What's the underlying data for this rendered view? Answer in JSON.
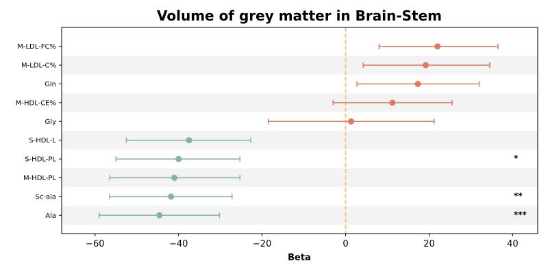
{
  "chart_data": {
    "type": "forest",
    "title": "Volume of grey matter in Brain-Stem",
    "xlabel": "Beta",
    "xlim": [
      -68,
      46
    ],
    "xticks": [
      -60,
      -40,
      -20,
      0,
      20,
      40
    ],
    "xtick_labels": [
      "−60",
      "−40",
      "−20",
      "0",
      "20",
      "40"
    ],
    "reference_line": 0,
    "colors": {
      "positive": "#DE7A5E",
      "negative": "#82B59B",
      "reference": "#F2C77A",
      "band": "#F3F3F3"
    },
    "rows": [
      {
        "label": "M-LDL-FC%",
        "beta": 22.0,
        "ci_low": 8.0,
        "ci_high": 36.5,
        "sig": ""
      },
      {
        "label": "M-LDL-C%",
        "beta": 19.2,
        "ci_low": 4.2,
        "ci_high": 34.5,
        "sig": ""
      },
      {
        "label": "Gln",
        "beta": 17.3,
        "ci_low": 2.7,
        "ci_high": 32.0,
        "sig": ""
      },
      {
        "label": "M-HDL-CE%",
        "beta": 11.2,
        "ci_low": -3.0,
        "ci_high": 25.5,
        "sig": ""
      },
      {
        "label": "Gly",
        "beta": 1.3,
        "ci_low": -18.5,
        "ci_high": 21.2,
        "sig": ""
      },
      {
        "label": "S-HDL-L",
        "beta": -37.5,
        "ci_low": -52.5,
        "ci_high": -22.7,
        "sig": ""
      },
      {
        "label": "S-HDL-PL",
        "beta": -40.0,
        "ci_low": -55.0,
        "ci_high": -25.3,
        "sig": "*"
      },
      {
        "label": "M-HDL-PL",
        "beta": -41.0,
        "ci_low": -56.5,
        "ci_high": -25.3,
        "sig": ""
      },
      {
        "label": "Sc-ala",
        "beta": -41.8,
        "ci_low": -56.5,
        "ci_high": -27.2,
        "sig": "**"
      },
      {
        "label": "Ala",
        "beta": -44.6,
        "ci_low": -59.0,
        "ci_high": -30.2,
        "sig": "***"
      }
    ]
  }
}
